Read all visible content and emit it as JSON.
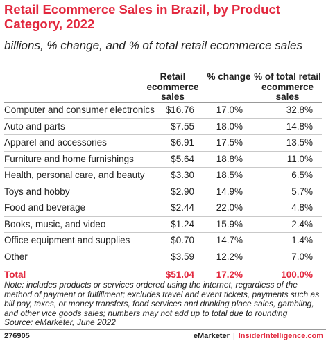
{
  "chart_data": {
    "type": "table",
    "title": "Retail Ecommerce Sales in Brazil, by Product Category, 2022",
    "subtitle": "billions, % change, and % of total retail ecommerce sales",
    "columns": [
      "",
      "Retail ecommerce sales",
      "% change",
      "% of total retail ecommerce sales"
    ],
    "rows": [
      [
        "Computer and consumer electronics",
        "$16.76",
        "17.0%",
        "32.8%"
      ],
      [
        "Auto and parts",
        "$7.55",
        "18.0%",
        "14.8%"
      ],
      [
        "Apparel and accessories",
        "$6.91",
        "17.5%",
        "13.5%"
      ],
      [
        "Furniture and home furnishings",
        "$5.64",
        "18.8%",
        "11.0%"
      ],
      [
        "Health, personal care, and beauty",
        "$3.30",
        "18.5%",
        "6.5%"
      ],
      [
        "Toys and hobby",
        "$2.90",
        "14.9%",
        "5.7%"
      ],
      [
        "Food and beverage",
        "$2.44",
        "22.0%",
        "4.8%"
      ],
      [
        "Books, music, and video",
        "$1.24",
        "15.9%",
        "2.4%"
      ],
      [
        "Office equipment and supplies",
        "$0.70",
        "14.7%",
        "1.4%"
      ],
      [
        "Other",
        "$3.59",
        "12.2%",
        "7.0%"
      ]
    ],
    "total": [
      "Total",
      "$51.04",
      "17.2%",
      "100.0%"
    ],
    "note": "Note: includes products or services ordered using the internet, regardless of the method of payment or fulfillment; excludes travel and event tickets, payments such as bill pay, taxes, or money transfers, food services and drinking place sales, gambling, and other vice goods sales; numbers may not add up to total due to rounding",
    "source": "Source: eMarketer, June 2022"
  },
  "footer": {
    "id": "276905",
    "brand1": "eMarketer",
    "separator": "|",
    "brand2": "InsiderIntelligence.com"
  },
  "colors": {
    "accent": "#e2283e",
    "text": "#222222",
    "rule": "#c9c9c9"
  }
}
